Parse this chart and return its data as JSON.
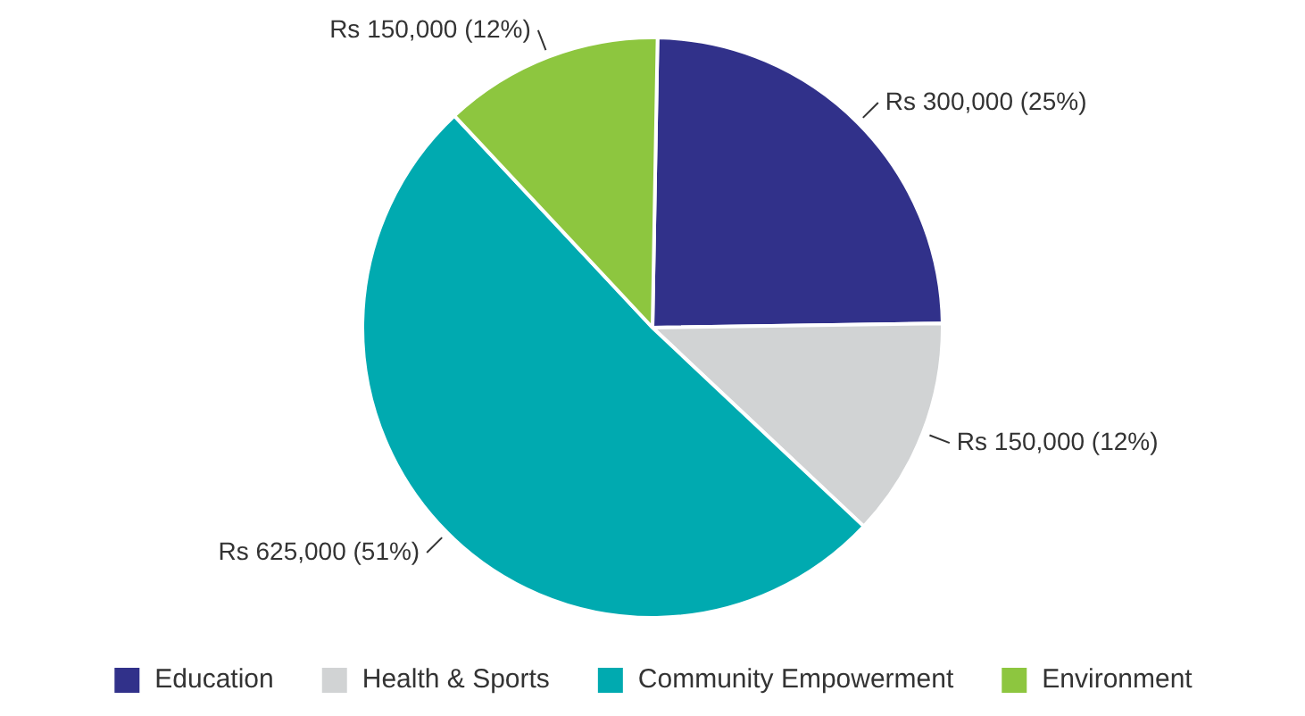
{
  "chart_data": {
    "type": "pie",
    "categories": [
      "Education",
      "Health & Sports",
      "Community Empowerment",
      "Environment"
    ],
    "values": [
      300000,
      150000,
      625000,
      150000
    ],
    "colors": [
      "#31318a",
      "#d1d3d4",
      "#00aab0",
      "#8dc63f"
    ],
    "value_labels": [
      "Rs 300,000 (25%)",
      "Rs 150,000 (12%)",
      "Rs 625,000 (51%)",
      "Rs 150,000 (12%)"
    ],
    "legend": "bottom"
  }
}
